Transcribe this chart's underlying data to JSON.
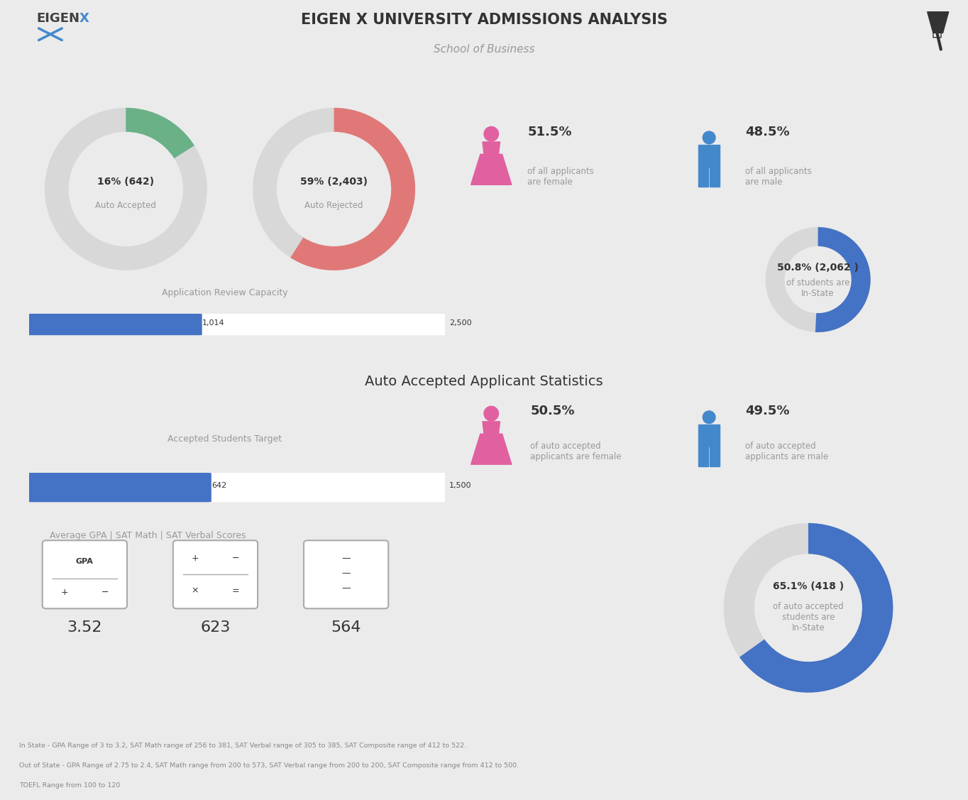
{
  "title": "EIGEN X UNIVERSITY ADMISSIONS ANALYSIS",
  "subtitle": "School of Business",
  "bg_color": "#ebebeb",
  "section_bg": "#ebebeb",
  "white": "#ffffff",
  "donut1_pct": 16,
  "donut1_val": 642,
  "donut1_label": "Auto Accepted",
  "donut1_color": "#6ab187",
  "donut1_bg": "#d8d8d8",
  "donut2_pct": 59,
  "donut2_val": 2403,
  "donut2_label": "Auto Rejected",
  "donut2_color": "#e07878",
  "donut2_bg": "#d8d8d8",
  "bar1_val": 1014,
  "bar1_max": 2500,
  "bar1_label": "Application Review Capacity",
  "bar_color": "#4472c4",
  "bar_bg": "#ffffff",
  "female_pct_top": "51.5%",
  "female_label_top": "of all applicants\nare female",
  "male_pct_top": "48.5%",
  "male_label_top": "of all applicants\nare male",
  "donut3_pct": 50.8,
  "donut3_val": 2062,
  "donut3_label": "of students are\nIn-State",
  "donut3_color": "#4472c4",
  "donut3_bg": "#d8d8d8",
  "section2_title": "Auto Accepted Applicant Statistics",
  "bar2_label": "Accepted Students Target",
  "bar2_val": 642,
  "bar2_max": 1500,
  "female_pct_bot": "50.5%",
  "female_label_bot": "of auto accepted\napplicants are female",
  "male_pct_bot": "49.5%",
  "male_label_bot": "of auto accepted\napplicants are male",
  "donut4_pct": 65.1,
  "donut4_val": 418,
  "donut4_label": "of auto accepted\nstudents are\nIn-State",
  "donut4_color": "#4472c4",
  "donut4_bg": "#d8d8d8",
  "gpa_label": "Average GPA | SAT Math | SAT Verbal Scores",
  "gpa_val": "3.52",
  "sat_math_val": "623",
  "sat_verbal_val": "564",
  "footer1": "In State - GPA Range of 3 to 3.2, SAT Math range of 256 to 381, SAT Verbal range of 305 to 385, SAT Composite range of 412 to 522.",
  "footer2": "Out of State - GPA Range of 2.75 to 2.4, SAT Math range from 200 to 573, SAT Verbal range from 200 to 200, SAT Composite range from 412 to 500.",
  "footer3": "TOEFL Range from 100 to 120",
  "female_color": "#e060a0",
  "male_color": "#4488cc",
  "dark_text": "#333333",
  "gray_text": "#999999",
  "divider_color": "#ffffff"
}
